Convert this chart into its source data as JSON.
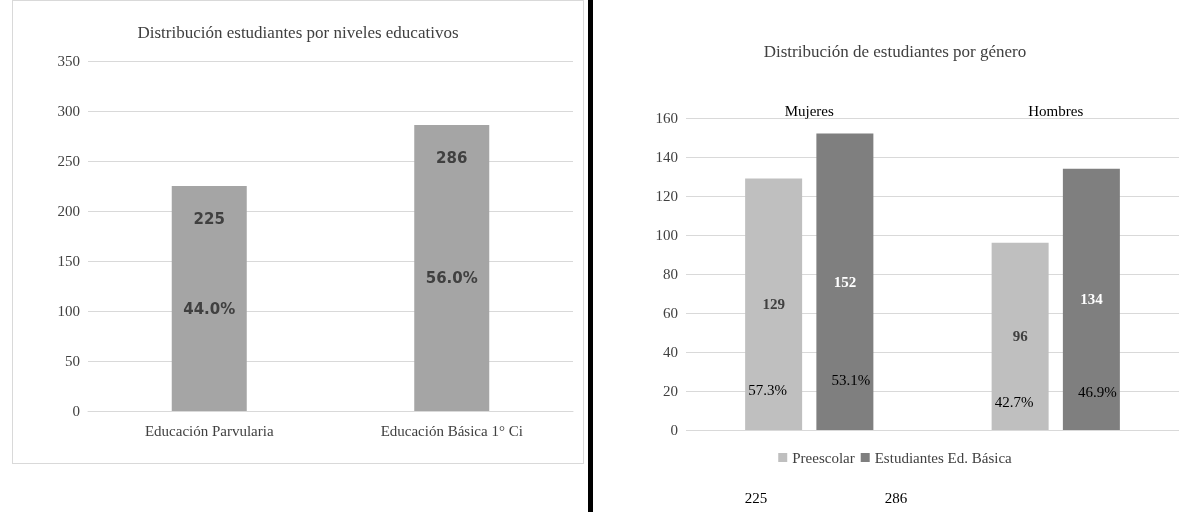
{
  "chart_data": [
    {
      "type": "bar",
      "title": "Distribución estudiantes por niveles educativos",
      "categories": [
        "Educación Parvularia",
        "Educación Básica 1° Ci"
      ],
      "values": [
        225,
        286
      ],
      "color": "#a5a5a5",
      "value_labels": [
        "225",
        "286"
      ],
      "annotations": [
        "44.0%",
        "56.0%"
      ],
      "ylim": [
        0,
        350
      ],
      "yticks": [
        0,
        50,
        100,
        150,
        200,
        250,
        300,
        350
      ],
      "grid": "y",
      "legend": false
    },
    {
      "type": "bar",
      "title": "Distribución de estudiantes por género",
      "categories": [
        "Mujeres",
        "Hombres"
      ],
      "series": [
        {
          "name": "Preescolar",
          "color": "#bfbfbf",
          "values": [
            129,
            96
          ]
        },
        {
          "name": "Estudiantes Ed. Básica",
          "color": "#7f7f7f",
          "values": [
            152,
            134
          ]
        }
      ],
      "data_labels": true,
      "annotations": [
        "57.3%",
        "53.1%",
        "42.7%",
        "46.9%",
        "225",
        "286"
      ],
      "ylim": [
        0,
        160
      ],
      "yticks": [
        0,
        20,
        40,
        60,
        80,
        100,
        120,
        140,
        160
      ],
      "grid": "y",
      "legend": "bottom"
    }
  ]
}
